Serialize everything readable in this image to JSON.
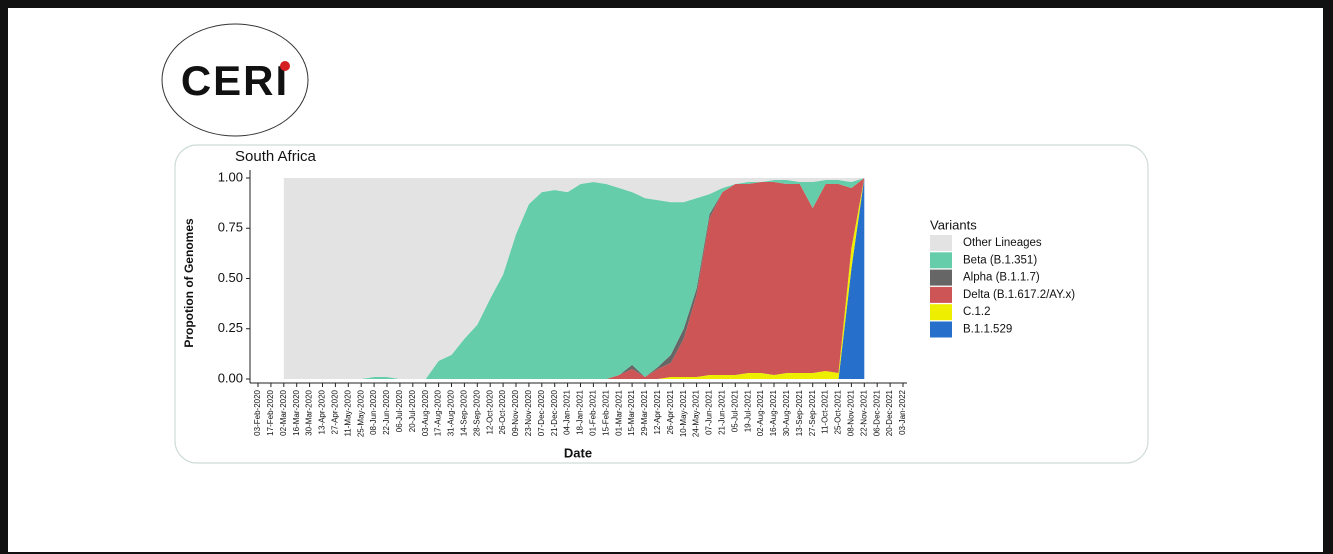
{
  "logo": "CERI",
  "chart_data": {
    "type": "stacked_area",
    "title": "South Africa",
    "x_label": "Date",
    "y_label": "Propotion of Genomes",
    "legend_title": "Variants",
    "legend_position": "right",
    "categories": [
      "03-Feb-2020",
      "17-Feb-2020",
      "02-Mar-2020",
      "16-Mar-2020",
      "30-Mar-2020",
      "13-Apr-2020",
      "27-Apr-2020",
      "11-May-2020",
      "25-May-2020",
      "08-Jun-2020",
      "22-Jun-2020",
      "06-Jul-2020",
      "20-Jul-2020",
      "03-Aug-2020",
      "17-Aug-2020",
      "31-Aug-2020",
      "14-Sep-2020",
      "28-Sep-2020",
      "12-Oct-2020",
      "26-Oct-2020",
      "09-Nov-2020",
      "23-Nov-2020",
      "07-Dec-2020",
      "21-Dec-2020",
      "04-Jan-2021",
      "18-Jan-2021",
      "01-Feb-2021",
      "15-Feb-2021",
      "01-Mar-2021",
      "15-Mar-2021",
      "29-Mar-2021",
      "12-Apr-2021",
      "26-Apr-2021",
      "10-May-2021",
      "24-May-2021",
      "07-Jun-2021",
      "21-Jun-2021",
      "05-Jul-2021",
      "19-Jul-2021",
      "02-Aug-2021",
      "16-Aug-2021",
      "30-Aug-2021",
      "13-Sep-2021",
      "27-Sep-2021",
      "11-Oct-2021",
      "25-Oct-2021",
      "08-Nov-2021",
      "22-Nov-2021",
      "06-Dec-2021",
      "20-Dec-2021",
      "03-Jan-2022"
    ],
    "ylim": [
      0,
      1
    ],
    "yticks": [
      {
        "value": 0,
        "label": "0.00"
      },
      {
        "value": 0.25,
        "label": "0.25"
      },
      {
        "value": 0.5,
        "label": "0.50"
      },
      {
        "value": 0.75,
        "label": "0.75"
      },
      {
        "value": 1,
        "label": "1.00"
      }
    ],
    "series": [
      {
        "name": "Other Lineages",
        "color": "#e3e3e3",
        "values": [
          null,
          null,
          1,
          1,
          1,
          1,
          1,
          1,
          1,
          0.99,
          0.99,
          1,
          1,
          1,
          0.91,
          0.88,
          0.8,
          0.73,
          0.6,
          0.48,
          0.28,
          0.13,
          0.07,
          0.06,
          0.07,
          0.03,
          0.02,
          0.03,
          0.05,
          0.07,
          0.1,
          0.11,
          0.12,
          0.12,
          0.1,
          0.08,
          0.05,
          0.03,
          0.02,
          0.02,
          0.01,
          0.01,
          0.02,
          0.02,
          0.01,
          0.01,
          0.02,
          0,
          null,
          null,
          null
        ]
      },
      {
        "name": "Beta (B.1.351)",
        "color": "#66cdaa",
        "values": [
          null,
          null,
          0,
          0,
          0,
          0,
          0,
          0,
          0,
          0.01,
          0.01,
          0,
          0,
          0,
          0.09,
          0.12,
          0.2,
          0.27,
          0.4,
          0.52,
          0.72,
          0.87,
          0.93,
          0.94,
          0.93,
          0.97,
          0.98,
          0.97,
          0.93,
          0.86,
          0.89,
          0.83,
          0.76,
          0.63,
          0.45,
          0.1,
          0.02,
          0,
          0.01,
          0,
          0.01,
          0.02,
          0.01,
          0.13,
          0.02,
          0.02,
          0.03,
          0,
          null,
          null,
          null
        ]
      },
      {
        "name": "Alpha (B.1.1.7)",
        "color": "#666666",
        "values": [
          null,
          null,
          0,
          0,
          0,
          0,
          0,
          0,
          0,
          0,
          0,
          0,
          0,
          0,
          0,
          0,
          0,
          0,
          0,
          0,
          0,
          0,
          0,
          0,
          0,
          0,
          0,
          0,
          0,
          0.02,
          0,
          0.01,
          0.04,
          0.05,
          0.03,
          0.02,
          0,
          0,
          0,
          0,
          0,
          0,
          0,
          0,
          0,
          0,
          0,
          0,
          null,
          null,
          null
        ]
      },
      {
        "name": "Delta (B.1.617.2/AY.x)",
        "color": "#cd5555",
        "values": [
          null,
          null,
          0,
          0,
          0,
          0,
          0,
          0,
          0,
          0,
          0,
          0,
          0,
          0,
          0,
          0,
          0,
          0,
          0,
          0,
          0,
          0,
          0,
          0,
          0,
          0,
          0,
          0,
          0.02,
          0.05,
          0.01,
          0.05,
          0.07,
          0.19,
          0.41,
          0.78,
          0.91,
          0.95,
          0.94,
          0.95,
          0.96,
          0.94,
          0.94,
          0.82,
          0.93,
          0.94,
          0.3,
          0,
          null,
          null,
          null
        ]
      },
      {
        "name": "C.1.2",
        "color": "#eeee00",
        "values": [
          null,
          null,
          0,
          0,
          0,
          0,
          0,
          0,
          0,
          0,
          0,
          0,
          0,
          0,
          0,
          0,
          0,
          0,
          0,
          0,
          0,
          0,
          0,
          0,
          0,
          0,
          0,
          0,
          0,
          0,
          0,
          0,
          0.01,
          0.01,
          0.01,
          0.02,
          0.02,
          0.02,
          0.03,
          0.03,
          0.02,
          0.03,
          0.03,
          0.03,
          0.04,
          0.03,
          0.1,
          0,
          null,
          null,
          null
        ]
      },
      {
        "name": "B.1.1.529",
        "color": "#2670cc",
        "values": [
          null,
          null,
          0,
          0,
          0,
          0,
          0,
          0,
          0,
          0,
          0,
          0,
          0,
          0,
          0,
          0,
          0,
          0,
          0,
          0,
          0,
          0,
          0,
          0,
          0,
          0,
          0,
          0,
          0,
          0,
          0,
          0,
          0,
          0,
          0,
          0,
          0,
          0,
          0,
          0,
          0,
          0,
          0,
          0,
          0,
          0,
          0.55,
          1,
          null,
          null,
          null
        ]
      }
    ]
  }
}
